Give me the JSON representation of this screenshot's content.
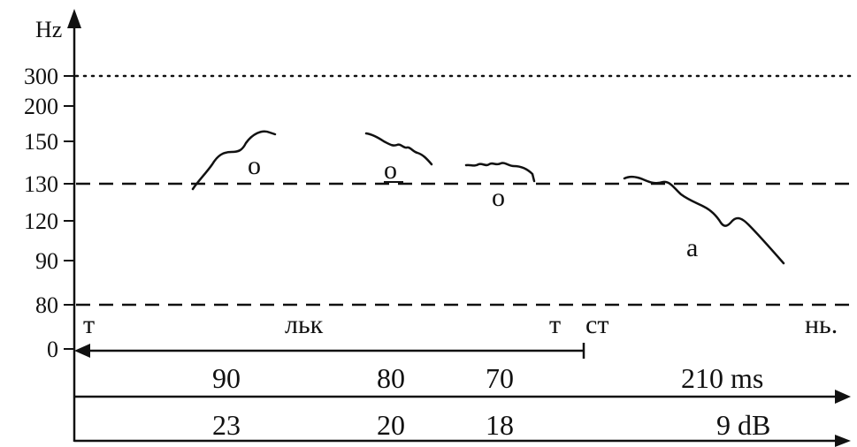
{
  "axis": {
    "unit": "Hz",
    "tick_labels": [
      "300",
      "200",
      "150",
      "130",
      "120",
      "90",
      "80",
      "0"
    ]
  },
  "reference_lines": [
    {
      "level": "300",
      "style": "dotted"
    },
    {
      "level": "130",
      "style": "dashed"
    },
    {
      "level": "80",
      "style": "dashed"
    }
  ],
  "segments": [
    "т",
    "льк",
    "т",
    "ст",
    "нь."
  ],
  "vowels": [
    "о",
    "о",
    "о",
    "а"
  ],
  "durations": {
    "values": [
      "90",
      "80",
      "70",
      "210 ms"
    ]
  },
  "intensities": {
    "values": [
      "23",
      "20",
      "18",
      "9 dB"
    ]
  },
  "colors": {
    "ink": "#111111",
    "background": "#ffffff"
  }
}
